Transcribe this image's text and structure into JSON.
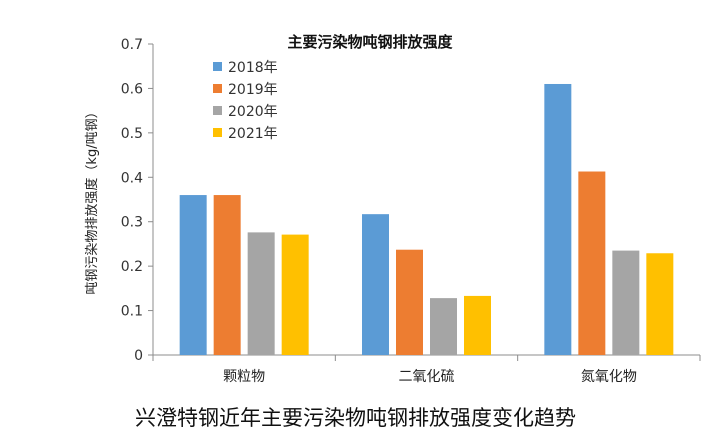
{
  "chart_data": {
    "type": "bar",
    "title": "主要污染物吨钢排放强度",
    "ylabel": "吨钢污染物排放强度（kg/吨钢）",
    "xlabel": "",
    "categories": [
      "颗粒物",
      "二氧化硫",
      "氮氧化物"
    ],
    "series": [
      {
        "name": "2018年",
        "color": "#5b9bd5",
        "values": [
          0.36,
          0.317,
          0.61
        ]
      },
      {
        "name": "2019年",
        "color": "#ed7d31",
        "values": [
          0.36,
          0.237,
          0.413
        ]
      },
      {
        "name": "2020年",
        "color": "#a5a5a5",
        "values": [
          0.276,
          0.128,
          0.235
        ]
      },
      {
        "name": "2021年",
        "color": "#ffc000",
        "values": [
          0.271,
          0.133,
          0.229
        ]
      }
    ],
    "ylim": [
      0,
      0.7
    ],
    "yticks": [
      "0",
      "0.1",
      "0.2",
      "0.3",
      "0.4",
      "0.5",
      "0.6",
      "0.7"
    ],
    "grid": false,
    "legend": "top-left"
  },
  "caption": "兴澄特钢近年主要污染物吨钢排放强度变化趋势"
}
